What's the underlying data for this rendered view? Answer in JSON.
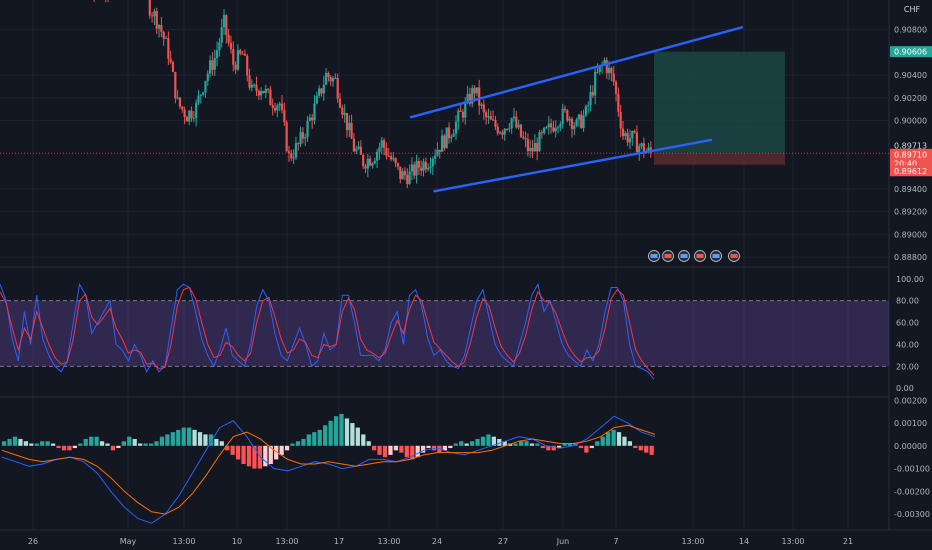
{
  "currency_label": "CHF",
  "colors": {
    "background": "#131722",
    "grid": "#1f2330",
    "bull": "#26a69a",
    "bear": "#ef5350",
    "channel": "#2962ff",
    "stoch_k": "#2962ff",
    "stoch_d": "#f23645",
    "stoch_band": "#7e57c2",
    "macd_line": "#2962ff",
    "signal_line": "#ff6d00",
    "hist_up_strong": "#26a69a",
    "hist_up_weak": "#b2dfdb",
    "hist_down_strong": "#ff5252",
    "hist_down_weak": "#ffcdd2",
    "position_profit": "#1e4e4a",
    "position_loss": "#5b2a2f"
  },
  "chart_data": [
    {
      "type": "candlestick",
      "pane": "price",
      "ylim": [
        0.8874,
        0.9106
      ],
      "price_ticks": [
        "0.90800",
        "0.90400",
        "0.90200",
        "0.90000",
        "0.89400",
        "0.89200",
        "0.89000",
        "0.88800"
      ],
      "price_tags": [
        {
          "value": "0.90606",
          "role": "take-profit"
        },
        {
          "value": "0.89713",
          "role": "entry"
        },
        {
          "value": "0.89710",
          "role": "last-price"
        },
        {
          "value": "20:40",
          "role": "countdown"
        },
        {
          "value": "0.89612",
          "role": "stop-loss"
        }
      ],
      "channel": {
        "upper": {
          "start_index": 0,
          "start": 0.9003,
          "end_index": 47,
          "end": 0.9082
        },
        "lower": {
          "start_index": 2,
          "start": 0.8938,
          "end_index": 44,
          "end": 0.8983
        }
      },
      "position": {
        "entry": 0.89713,
        "take_profit": 0.90606,
        "stop_loss": 0.89612
      },
      "close_path": [
        0.9134,
        0.9112,
        0.9122,
        0.9105,
        0.9128,
        0.9118,
        0.913,
        0.91,
        0.9085,
        0.906,
        0.9015,
        0.9005,
        0.9012,
        0.9038,
        0.9055,
        0.9085,
        0.905,
        0.9058,
        0.9025,
        0.903,
        0.9018,
        0.9015,
        0.8968,
        0.8978,
        0.8996,
        0.9016,
        0.904,
        0.9035,
        0.9004,
        0.8976,
        0.8964,
        0.8968,
        0.898,
        0.8966,
        0.8952,
        0.8952,
        0.896,
        0.8965,
        0.8976,
        0.8986,
        0.8998,
        0.9012,
        0.9028,
        0.9004,
        0.8996,
        0.8993,
        0.9002,
        0.8986,
        0.8972,
        0.8982,
        0.8992,
        0.9002,
        0.9006,
        0.8995,
        0.9006,
        0.9036,
        0.9052,
        0.9034,
        0.8988,
        0.8984,
        0.8976,
        0.8971
      ]
    },
    {
      "type": "line",
      "pane": "stochastic",
      "ylim": [
        -8,
        108
      ],
      "y_ticks": [
        "100.00",
        "80.00",
        "60.00",
        "40.00",
        "20.00",
        "0.00"
      ],
      "band": [
        20,
        80
      ],
      "series": [
        {
          "key": "k",
          "values": [
            95,
            80,
            45,
            25,
            70,
            40,
            85,
            45,
            30,
            20,
            15,
            25,
            60,
            95,
            85,
            50,
            60,
            70,
            80,
            40,
            35,
            25,
            40,
            30,
            15,
            25,
            15,
            20,
            55,
            90,
            95,
            92,
            70,
            45,
            30,
            20,
            35,
            55,
            30,
            25,
            20,
            40,
            75,
            90,
            80,
            50,
            30,
            25,
            40,
            55,
            40,
            20,
            25,
            50,
            35,
            40,
            85,
            85,
            60,
            30,
            30,
            30,
            25,
            35,
            60,
            70,
            40,
            85,
            90,
            75,
            45,
            30,
            35,
            25,
            20,
            18,
            30,
            55,
            80,
            90,
            65,
            40,
            30,
            25,
            20,
            40,
            60,
            85,
            95,
            70,
            80,
            60,
            40,
            30,
            25,
            20,
            35,
            25,
            40,
            70,
            92,
            92,
            80,
            40,
            20,
            18,
            15,
            8
          ]
        },
        {
          "key": "d",
          "values": [
            88,
            78,
            55,
            35,
            55,
            45,
            70,
            55,
            40,
            28,
            22,
            24,
            45,
            80,
            86,
            65,
            58,
            65,
            73,
            55,
            45,
            32,
            35,
            33,
            22,
            23,
            18,
            19,
            40,
            75,
            90,
            92,
            82,
            60,
            40,
            28,
            30,
            42,
            38,
            30,
            25,
            32,
            60,
            80,
            83,
            65,
            45,
            32,
            35,
            45,
            42,
            30,
            28,
            40,
            38,
            40,
            70,
            82,
            72,
            45,
            35,
            32,
            28,
            32,
            48,
            62,
            50,
            72,
            85,
            80,
            60,
            42,
            36,
            30,
            24,
            20,
            24,
            42,
            65,
            82,
            75,
            55,
            38,
            30,
            24,
            32,
            48,
            72,
            88,
            80,
            78,
            68,
            52,
            38,
            30,
            24,
            28,
            28,
            34,
            55,
            82,
            90,
            85,
            60,
            35,
            25,
            18,
            12
          ]
        }
      ]
    },
    {
      "type": "bar",
      "pane": "macd",
      "ylim": [
        -0.0037,
        0.0021
      ],
      "y_ticks": [
        "0.00200",
        "0.00100",
        "0.00000",
        "-0.00100",
        "-0.00200",
        "-0.00300"
      ],
      "histogram": [
        0.0002,
        0.0003,
        0.0004,
        0.0003,
        0.0002,
        0.0001,
        0.0001,
        0.0002,
        0.0002,
        0.0001,
        -0.0001,
        -0.0002,
        -0.0002,
        -0.0001,
        0.0001,
        0.0003,
        0.0004,
        0.0004,
        0.0002,
        0.0001,
        -0.0002,
        -0.0001,
        0.0002,
        0.0004,
        0.0003,
        0.0001,
        0.0001,
        0.0001,
        0.0002,
        0.0004,
        0.0005,
        0.0006,
        0.0007,
        0.0008,
        0.0008,
        0.0007,
        0.0006,
        0.0005,
        0.0005,
        0.0003,
        0.0002,
        -0.0002,
        -0.0004,
        -0.0006,
        -0.0008,
        -0.0009,
        -0.001,
        -0.001,
        -0.0009,
        -0.0008,
        -0.0006,
        -0.0004,
        -0.0002,
        0.0001,
        0.0002,
        0.0003,
        0.0005,
        0.0006,
        0.0007,
        0.0009,
        0.0011,
        0.0013,
        0.0014,
        0.0012,
        0.001,
        0.0008,
        0.0005,
        0.0002,
        -0.0002,
        -0.0004,
        -0.0005,
        -0.0004,
        -0.0002,
        -0.0003,
        -0.0005,
        -0.0006,
        -0.0005,
        -0.0003,
        -0.0001,
        -0.0002,
        -0.0003,
        -0.0002,
        -0.0001,
        0.0001,
        0.0002,
        0.0001,
        0.0002,
        0.0003,
        0.0004,
        0.0005,
        0.0004,
        0.0003,
        0.0002,
        0.0001,
        0.0001,
        0.0002,
        0.0002,
        0.0001,
        0.0001,
        -0.0001,
        -0.0002,
        -0.0002,
        -0.0001,
        0.0001,
        0.0001,
        0.0001,
        -0.0001,
        -0.0003,
        -0.0001,
        0.0002,
        0.0004,
        0.0006,
        0.0007,
        0.0006,
        0.0004,
        0.0002,
        -0.0001,
        -0.0002,
        -0.0003,
        -0.0004
      ],
      "series": [
        {
          "key": "macd",
          "values": [
            -0.0005,
            -0.0007,
            -0.0009,
            -0.0008,
            -0.0006,
            -0.0005,
            -0.0007,
            -0.0012,
            -0.002,
            -0.0027,
            -0.0032,
            -0.0034,
            -0.003,
            -0.0022,
            -0.0012,
            -0.0002,
            0.0008,
            0.0011,
            0.0004,
            -0.0005,
            -0.001,
            -0.0011,
            -0.0009,
            -0.0007,
            -0.0008,
            -0.001,
            -0.0009,
            -0.0006,
            -0.0006,
            -0.0007,
            -0.0005,
            -0.0002,
            -0.0001,
            -0.0003,
            -0.0004,
            -0.0002,
            0.0,
            0.0002,
            0.0004,
            0.0003,
            0.0,
            -0.0001,
            0.0,
            0.0003,
            0.0008,
            0.0013,
            0.001,
            0.0006,
            0.0004
          ]
        },
        {
          "key": "signal",
          "values": [
            -0.0002,
            -0.0004,
            -0.0006,
            -0.0007,
            -0.0006,
            -0.0005,
            -0.0006,
            -0.0009,
            -0.0014,
            -0.002,
            -0.0025,
            -0.0029,
            -0.003,
            -0.0027,
            -0.0021,
            -0.0013,
            -0.0004,
            0.0004,
            0.0006,
            0.0003,
            -0.0002,
            -0.0006,
            -0.0008,
            -0.0008,
            -0.0007,
            -0.0008,
            -0.0009,
            -0.0008,
            -0.0007,
            -0.0007,
            -0.0006,
            -0.0004,
            -0.0003,
            -0.0003,
            -0.0003,
            -0.0003,
            -0.0002,
            0.0,
            0.0002,
            0.0003,
            0.0002,
            0.0001,
            0.0001,
            0.0002,
            0.0004,
            0.0008,
            0.0009,
            0.0007,
            0.0005
          ]
        }
      ]
    }
  ],
  "time_axis": [
    "26",
    "May",
    "13:00",
    "10",
    "13:00",
    "17",
    "13:00",
    "24",
    "27",
    "Jun",
    "7",
    "13:00",
    "14",
    "13:00",
    "21"
  ]
}
